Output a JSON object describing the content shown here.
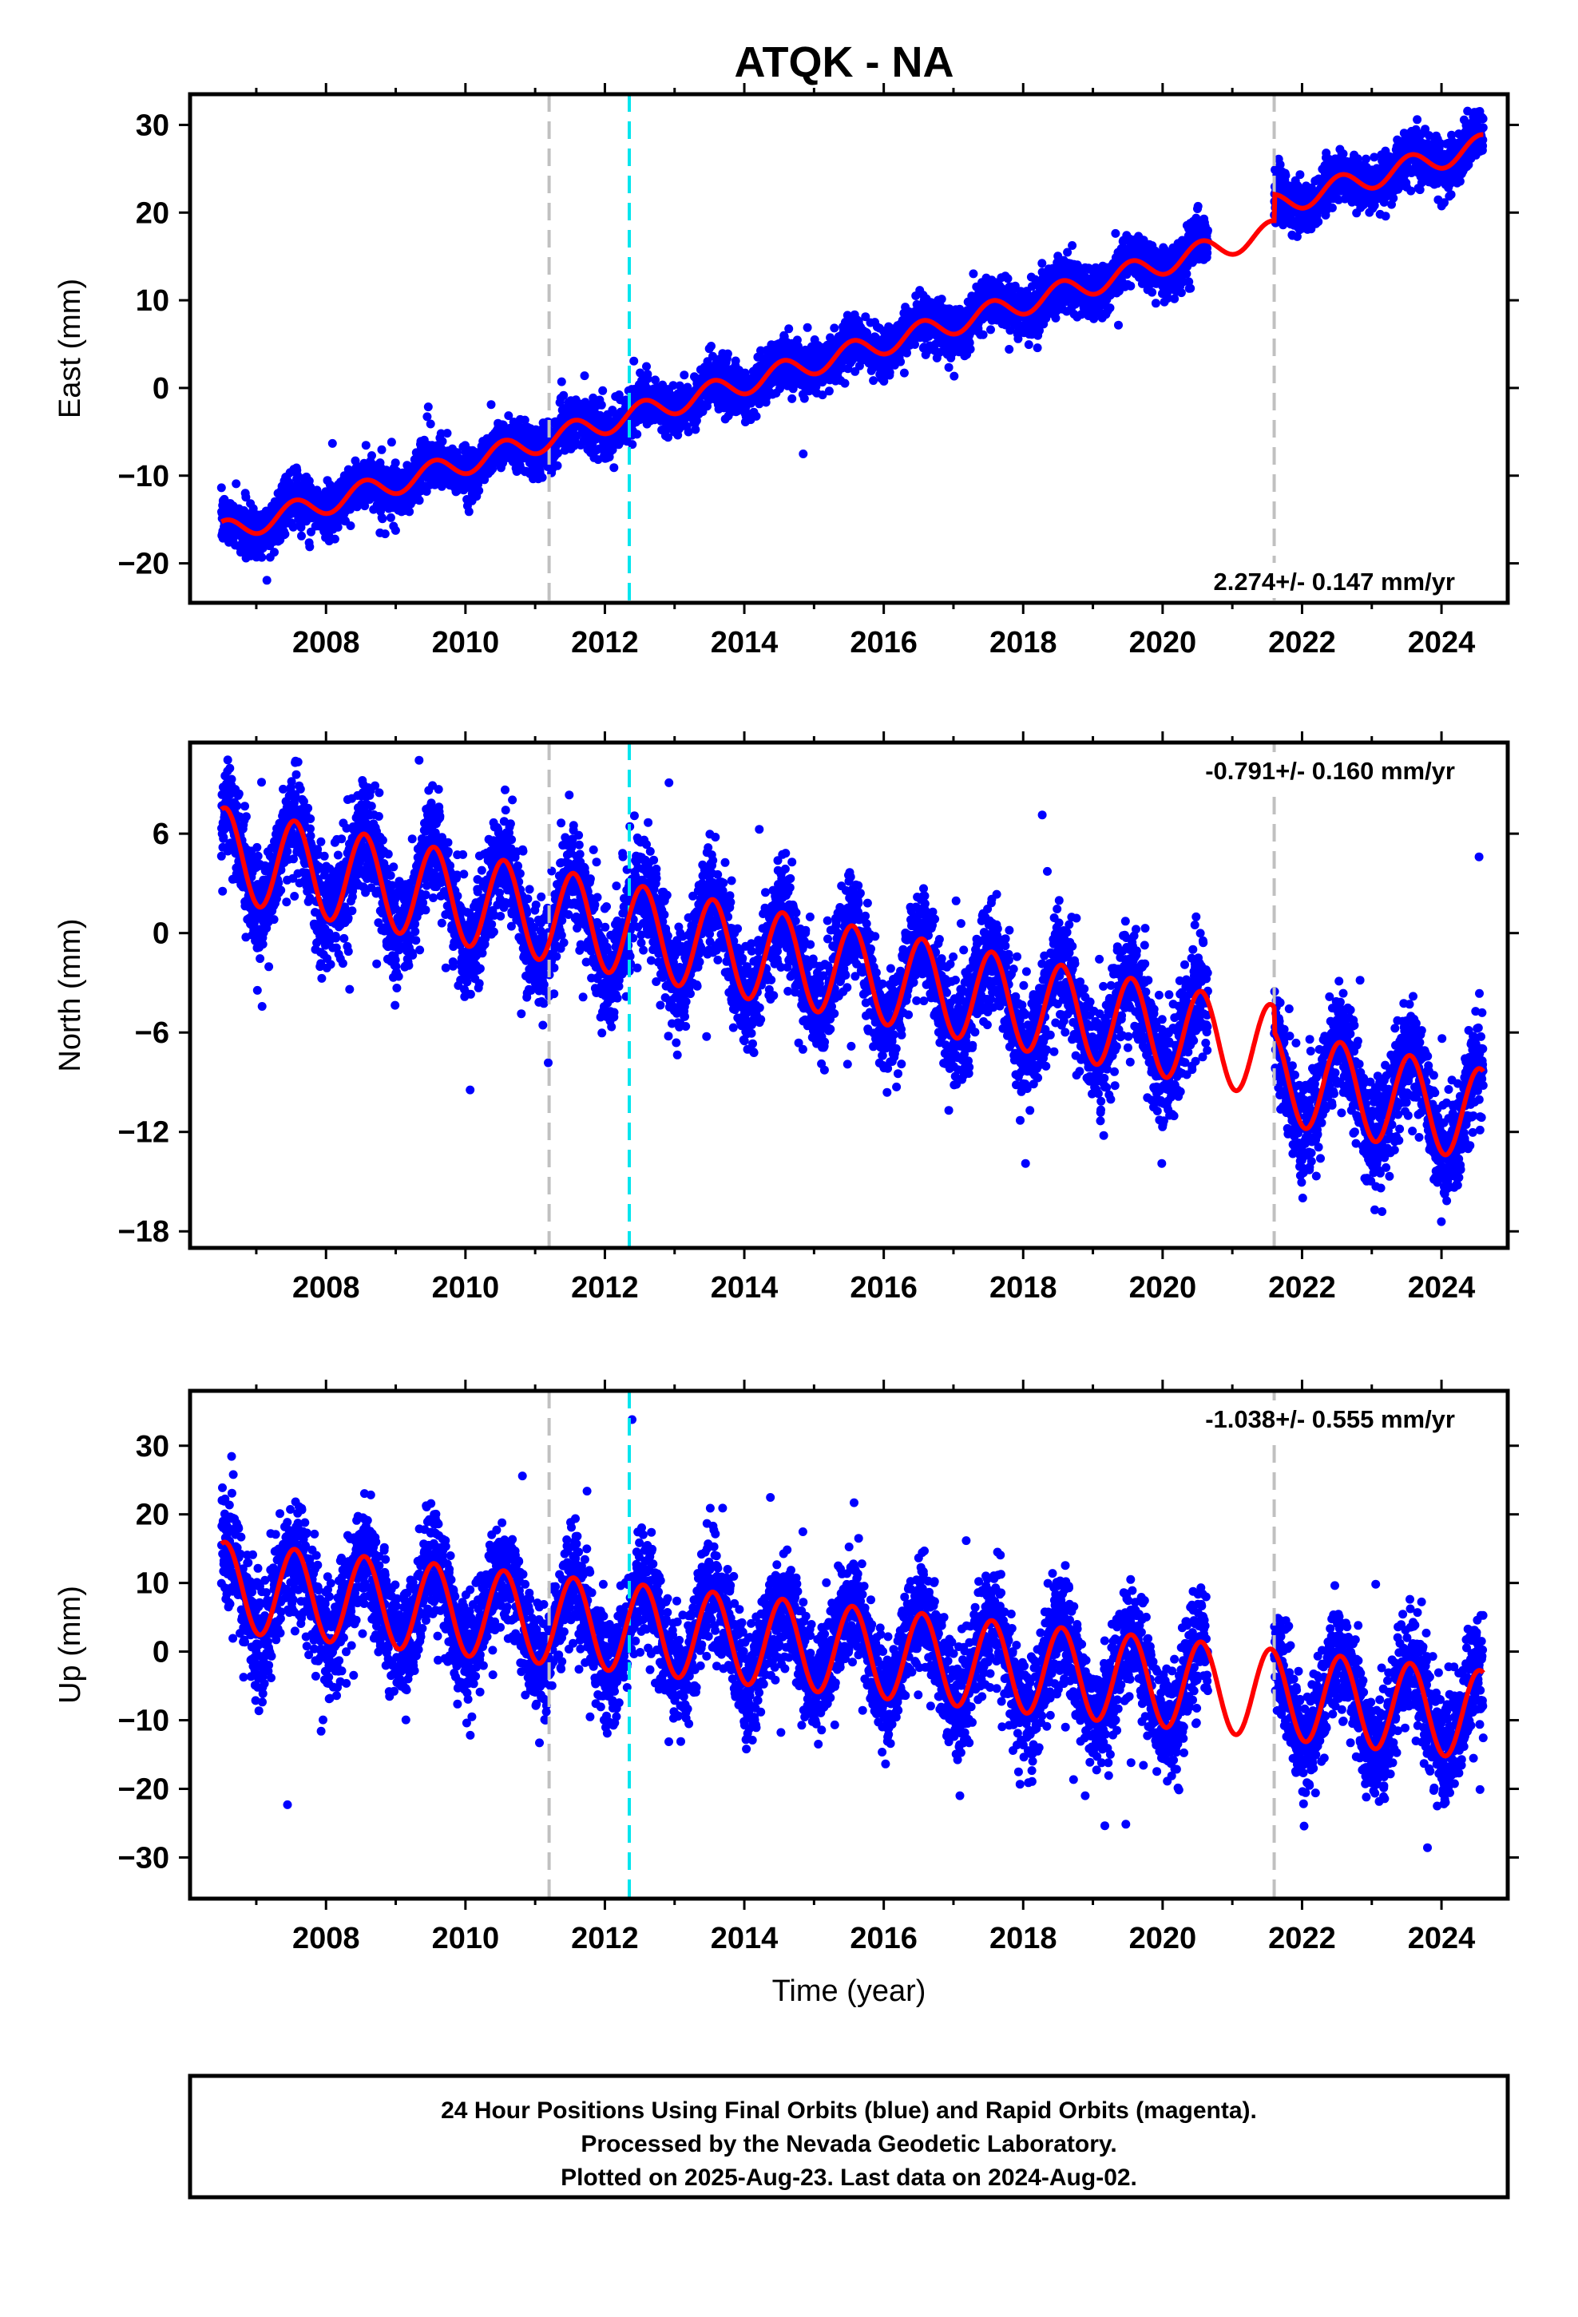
{
  "title": "ATQK - NA",
  "colors": {
    "data_points": "#0000ff",
    "model_fit": "#ff0000",
    "equipment_change_line": "#c0c0c0",
    "earthquake_line": "#00e5ee",
    "frame": "#000000"
  },
  "chart_data": [
    {
      "type": "scatter",
      "component": "east",
      "ylabel": "East (mm)",
      "xlabel": "",
      "xlim": [
        2006.05,
        2024.95
      ],
      "ylim": [
        -24.5,
        33.5
      ],
      "x_ticks": [
        2008,
        2010,
        2012,
        2014,
        2016,
        2018,
        2020,
        2022,
        2024
      ],
      "y_ticks": [
        -20,
        -10,
        0,
        10,
        20,
        30
      ],
      "rate_annotation": "2.274+/- 0.147 mm/yr",
      "rate_position": "bottom-right",
      "grid": false,
      "series": [
        {
          "role": "daily-positions",
          "marker": "dot"
        },
        {
          "role": "model-fit",
          "style": "line",
          "offset": -16.5,
          "rate": 2.274,
          "annual_amplitude": 1.3
        }
      ],
      "reference_lines": [
        {
          "x": 2011.2,
          "style": "dashed",
          "color": "#c0c0c0"
        },
        {
          "x": 2012.35,
          "style": "dashed",
          "color": "#00e5ee"
        },
        {
          "x": 2021.6,
          "style": "dashed",
          "color": "#c0c0c0"
        }
      ],
      "offsets_at_lines": [
        0,
        0,
        3
      ],
      "data_gap": [
        2020.65,
        2021.6
      ],
      "scatter_spread": 1.4
    },
    {
      "type": "scatter",
      "component": "north",
      "ylabel": "North (mm)",
      "xlabel": "",
      "xlim": [
        2006.05,
        2024.95
      ],
      "ylim": [
        -19,
        11.5
      ],
      "x_ticks": [
        2008,
        2010,
        2012,
        2014,
        2016,
        2018,
        2020,
        2022,
        2024
      ],
      "y_ticks": [
        -18,
        -12,
        -6,
        0,
        6
      ],
      "rate_annotation": "-0.791+/- 0.160 mm/yr",
      "rate_position": "top-right",
      "grid": false,
      "series": [
        {
          "role": "daily-positions",
          "marker": "dot"
        },
        {
          "role": "model-fit",
          "style": "line",
          "offset": 4.8,
          "rate": -0.791,
          "annual_amplitude": 2.8
        }
      ],
      "reference_lines": [
        {
          "x": 2011.2,
          "style": "dashed",
          "color": "#c0c0c0"
        },
        {
          "x": 2012.35,
          "style": "dashed",
          "color": "#00e5ee"
        },
        {
          "x": 2021.6,
          "style": "dashed",
          "color": "#c0c0c0"
        }
      ],
      "offsets_at_lines": [
        0,
        0,
        -1.5
      ],
      "data_gap": [
        2020.65,
        2021.6
      ],
      "scatter_spread": 1.6
    },
    {
      "type": "scatter",
      "component": "up",
      "ylabel": "Up (mm)",
      "xlabel": "Time (year)",
      "xlim": [
        2006.05,
        2024.95
      ],
      "ylim": [
        -36,
        38
      ],
      "x_ticks": [
        2008,
        2010,
        2012,
        2014,
        2016,
        2018,
        2020,
        2022,
        2024
      ],
      "y_ticks": [
        -30,
        -20,
        -10,
        0,
        10,
        20,
        30
      ],
      "rate_annotation": "-1.038+/- 0.555 mm/yr",
      "rate_position": "top-right",
      "grid": false,
      "series": [
        {
          "role": "daily-positions",
          "marker": "dot"
        },
        {
          "role": "model-fit",
          "style": "line",
          "offset": 9.5,
          "rate": -1.038,
          "annual_amplitude": 6.5
        }
      ],
      "reference_lines": [
        {
          "x": 2011.2,
          "style": "dashed",
          "color": "#c0c0c0"
        },
        {
          "x": 2012.35,
          "style": "dashed",
          "color": "#00e5ee"
        },
        {
          "x": 2021.6,
          "style": "dashed",
          "color": "#c0c0c0"
        }
      ],
      "offsets_at_lines": [
        0,
        0,
        0
      ],
      "data_gap": [
        2020.65,
        2021.6
      ],
      "scatter_spread": 4.0
    }
  ],
  "caption": {
    "line1": "24 Hour Positions Using Final Orbits (blue) and Rapid Orbits (magenta).",
    "line2": "Processed by the Nevada Geodetic Laboratory.",
    "line3": "Plotted on 2025-Aug-23. Last data on 2024-Aug-02."
  }
}
